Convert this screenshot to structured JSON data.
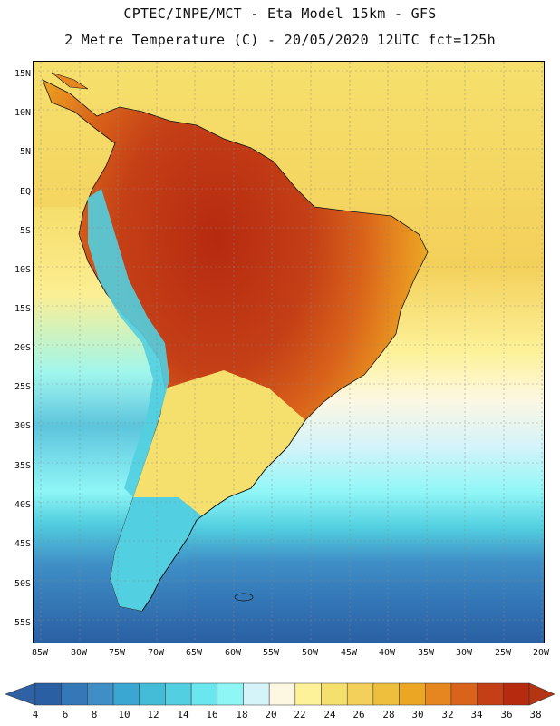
{
  "title": {
    "line1": "CPTEC/INPE/MCT -  Eta Model 15km - GFS",
    "line2": "2 Metre Temperature (C) - 20/05/2020 12UTC fct=125h"
  },
  "map": {
    "lat_labels": [
      "15N",
      "10N",
      "5N",
      "EQ",
      "5S",
      "10S",
      "15S",
      "20S",
      "25S",
      "30S",
      "35S",
      "40S",
      "45S",
      "50S",
      "55S"
    ],
    "lon_labels": [
      "85W",
      "80W",
      "75W",
      "70W",
      "65W",
      "60W",
      "55W",
      "50W",
      "45W",
      "40W",
      "35W",
      "30W",
      "25W",
      "20W"
    ],
    "region": "South America"
  },
  "colorbar": {
    "labels": [
      "4",
      "6",
      "8",
      "10",
      "12",
      "14",
      "16",
      "18",
      "20",
      "22",
      "24",
      "26",
      "28",
      "30",
      "32",
      "34",
      "36",
      "38"
    ],
    "colors": [
      "#2a5fa3",
      "#3478b8",
      "#3f8ec6",
      "#3aa6d2",
      "#44bcd8",
      "#52cfe0",
      "#6ae6ee",
      "#8ff6f6",
      "#d4f4fa",
      "#fdf7e2",
      "#fdf29a",
      "#f6e06d",
      "#f3d05a",
      "#edbf3c",
      "#eba724",
      "#e5861e",
      "#d9631a",
      "#c43f16",
      "#b62a10"
    ],
    "min_color": "#2e62a5",
    "max_color": "#b53412"
  }
}
